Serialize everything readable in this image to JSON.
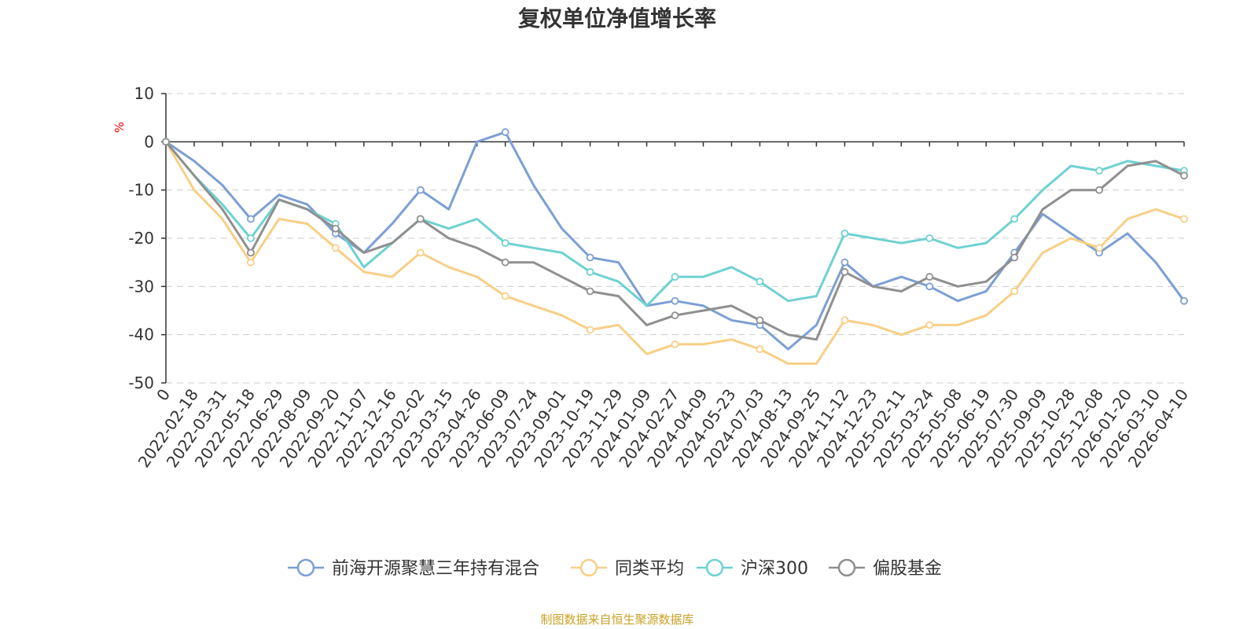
{
  "chart_data": {
    "type": "line",
    "title": "复权单位净值增长率",
    "ylabel": "%",
    "xlabel": "",
    "ylim": [
      -50,
      10
    ],
    "yticks": [
      10,
      0,
      -10,
      -20,
      -30,
      -40,
      -50
    ],
    "categories": [
      "0",
      "2022-02-18",
      "2022-03-31",
      "2022-05-18",
      "2022-06-29",
      "2022-08-09",
      "2022-09-20",
      "2022-11-07",
      "2022-12-16",
      "2023-02-02",
      "2023-03-15",
      "2023-04-26",
      "2023-06-09",
      "2023-07-24",
      "2023-09-01",
      "2023-10-19",
      "2023-11-29",
      "2024-01-09",
      "2024-02-27",
      "2024-04-09",
      "2024-05-23",
      "2024-07-03",
      "2024-08-13",
      "2024-09-25",
      "2024-11-12",
      "2024-12-23",
      "2025-02-11",
      "2025-03-24",
      "2025-05-08",
      "2025-06-19",
      "2025-07-30",
      "2025-09-09",
      "2025-10-28",
      "2025-12-08",
      "2026-01-20",
      "2026-03-10",
      "2026-04-10"
    ],
    "series": [
      {
        "name": "前海开源聚慧三年持有混合",
        "color": "#7c9fd4",
        "values": [
          0,
          -4,
          -9,
          -16,
          -11,
          -13,
          -19,
          -23,
          -17,
          -10,
          -14,
          0,
          2,
          -9,
          -18,
          -24,
          -25,
          -34,
          -33,
          -34,
          -37,
          -38,
          -43,
          -38,
          -25,
          -30,
          -28,
          -30,
          -33,
          -31,
          -23,
          -15,
          -19,
          -23,
          -19,
          -25,
          -33
        ]
      },
      {
        "name": "同类平均",
        "color": "#f8cf86",
        "values": [
          0,
          -10,
          -16,
          -25,
          -16,
          -17,
          -22,
          -27,
          -28,
          -23,
          -26,
          -28,
          -32,
          -34,
          -36,
          -39,
          -38,
          -44,
          -42,
          -42,
          -41,
          -43,
          -46,
          -46,
          -37,
          -38,
          -40,
          -38,
          -38,
          -36,
          -31,
          -23,
          -20,
          -22,
          -16,
          -14,
          -16
        ]
      },
      {
        "name": "沪深300",
        "color": "#6fd1d1",
        "values": [
          0,
          -7,
          -13,
          -20,
          -12,
          -14,
          -17,
          -26,
          -21,
          -16,
          -18,
          -16,
          -21,
          -22,
          -23,
          -27,
          -29,
          -34,
          -28,
          -28,
          -26,
          -29,
          -33,
          -32,
          -19,
          -20,
          -21,
          -20,
          -22,
          -21,
          -16,
          -10,
          -5,
          -6,
          -4,
          -5,
          -6
        ]
      },
      {
        "name": "偏股基金",
        "color": "#8f8f8f",
        "values": [
          0,
          -7,
          -14,
          -23,
          -12,
          -14,
          -18,
          -23,
          -21,
          -16,
          -20,
          -22,
          -25,
          -25,
          -28,
          -31,
          -32,
          -38,
          -36,
          -35,
          -34,
          -37,
          -40,
          -41,
          -27,
          -30,
          -31,
          -28,
          -30,
          -29,
          -24,
          -14,
          -10,
          -10,
          -5,
          -4,
          -7
        ]
      }
    ]
  },
  "legend_position": "bottom-center",
  "source_note": "制图数据来自恒生聚源数据库"
}
